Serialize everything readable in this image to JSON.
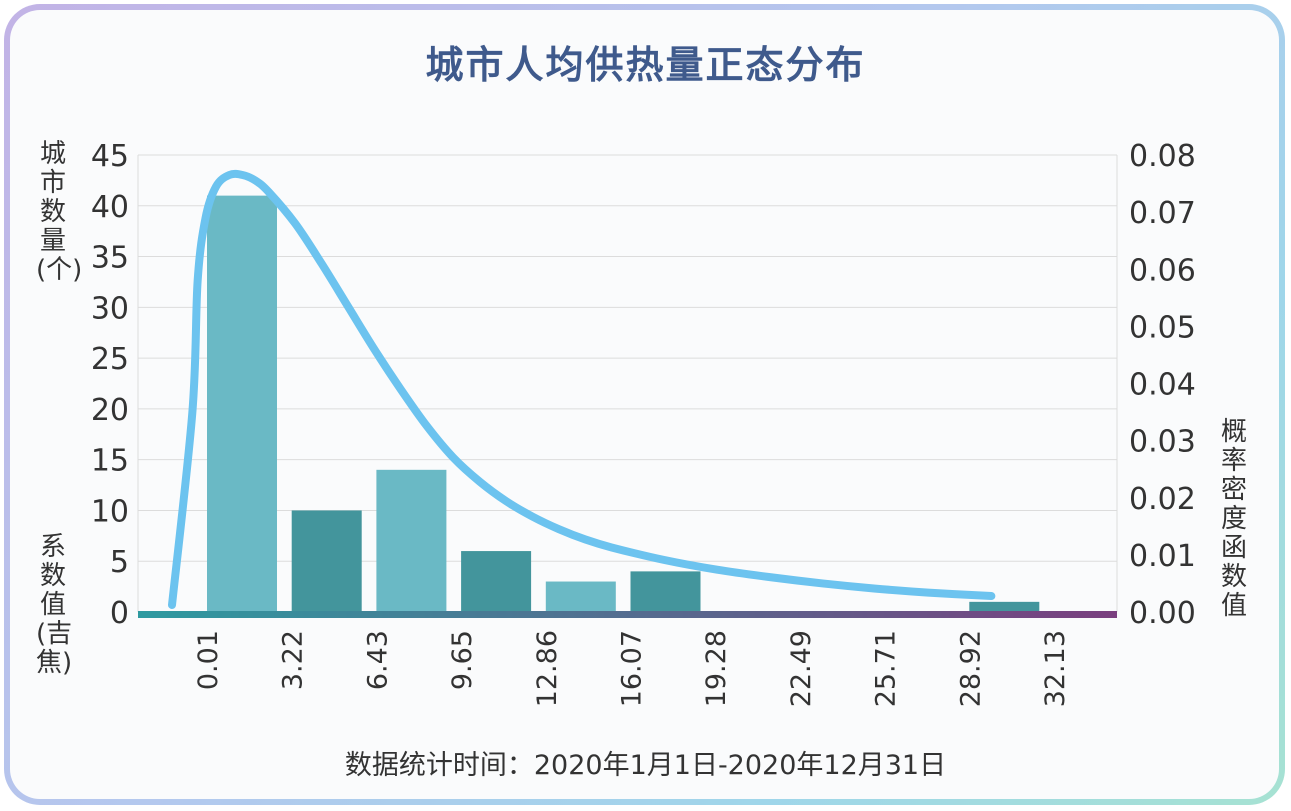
{
  "colors": {
    "bar_light": "#6ab9c5",
    "bar_dark": "#43959c",
    "curve": "#6cc3ef",
    "title": "#3f5a8c",
    "baseline_start": "#2e9aa0",
    "baseline_end": "#7a3f7f"
  },
  "chart_data": {
    "type": "bar",
    "title": "城市人均供热量正态分布",
    "ylabel_left_top": "城市数量(个)",
    "ylabel_left_bottom": "系数值(吉焦)",
    "ylabel_right": "概率密度函数值",
    "footer": "数据统计时间：2020年1月1日-2020年12月31日",
    "ylim": [
      0,
      45
    ],
    "y2lim": [
      0,
      0.08
    ],
    "yticks": [
      "0",
      "5",
      "10",
      "15",
      "20",
      "25",
      "30",
      "35",
      "40",
      "45"
    ],
    "y2ticks": [
      "0.00",
      "0.01",
      "0.02",
      "0.03",
      "0.04",
      "0.05",
      "0.06",
      "0.07",
      "0.08"
    ],
    "xticks": [
      "0.01",
      "3.22",
      "6.43",
      "9.65",
      "12.86",
      "16.07",
      "19.28",
      "22.49",
      "25.71",
      "28.92",
      "32.13"
    ],
    "bars": [
      {
        "range": [
          "0.01",
          "3.22"
        ],
        "value": 41
      },
      {
        "range": [
          "3.22",
          "6.43"
        ],
        "value": 10
      },
      {
        "range": [
          "6.43",
          "9.65"
        ],
        "value": 14
      },
      {
        "range": [
          "9.65",
          "12.86"
        ],
        "value": 6
      },
      {
        "range": [
          "12.86",
          "16.07"
        ],
        "value": 3
      },
      {
        "range": [
          "16.07",
          "19.28"
        ],
        "value": 4
      },
      {
        "range": [
          "19.28",
          "22.49"
        ],
        "value": 0
      },
      {
        "range": [
          "22.49",
          "25.71"
        ],
        "value": 0
      },
      {
        "range": [
          "25.71",
          "28.92"
        ],
        "value": 0
      },
      {
        "range": [
          "28.92",
          "32.13"
        ],
        "value": 1
      }
    ],
    "density_curve": {
      "x": [
        0.01,
        0.1,
        0.3,
        0.6,
        1.0,
        1.5,
        2.0,
        2.5,
        3.0,
        4.0,
        5.0,
        6.0,
        7.0,
        8.0,
        9.0,
        10.0,
        11.0,
        12.0,
        13.0,
        14.0,
        15.0,
        16.0,
        18.0,
        20.0,
        22.0,
        24.0,
        26.0,
        28.0,
        30.4
      ],
      "y": [
        0.0,
        0.035,
        0.058,
        0.069,
        0.0745,
        0.0765,
        0.0765,
        0.0755,
        0.0735,
        0.068,
        0.061,
        0.0535,
        0.046,
        0.039,
        0.0325,
        0.027,
        0.0228,
        0.0194,
        0.0167,
        0.0145,
        0.0127,
        0.0113,
        0.0091,
        0.0074,
        0.0061,
        0.005,
        0.0041,
        0.0034,
        0.0028
      ]
    }
  }
}
